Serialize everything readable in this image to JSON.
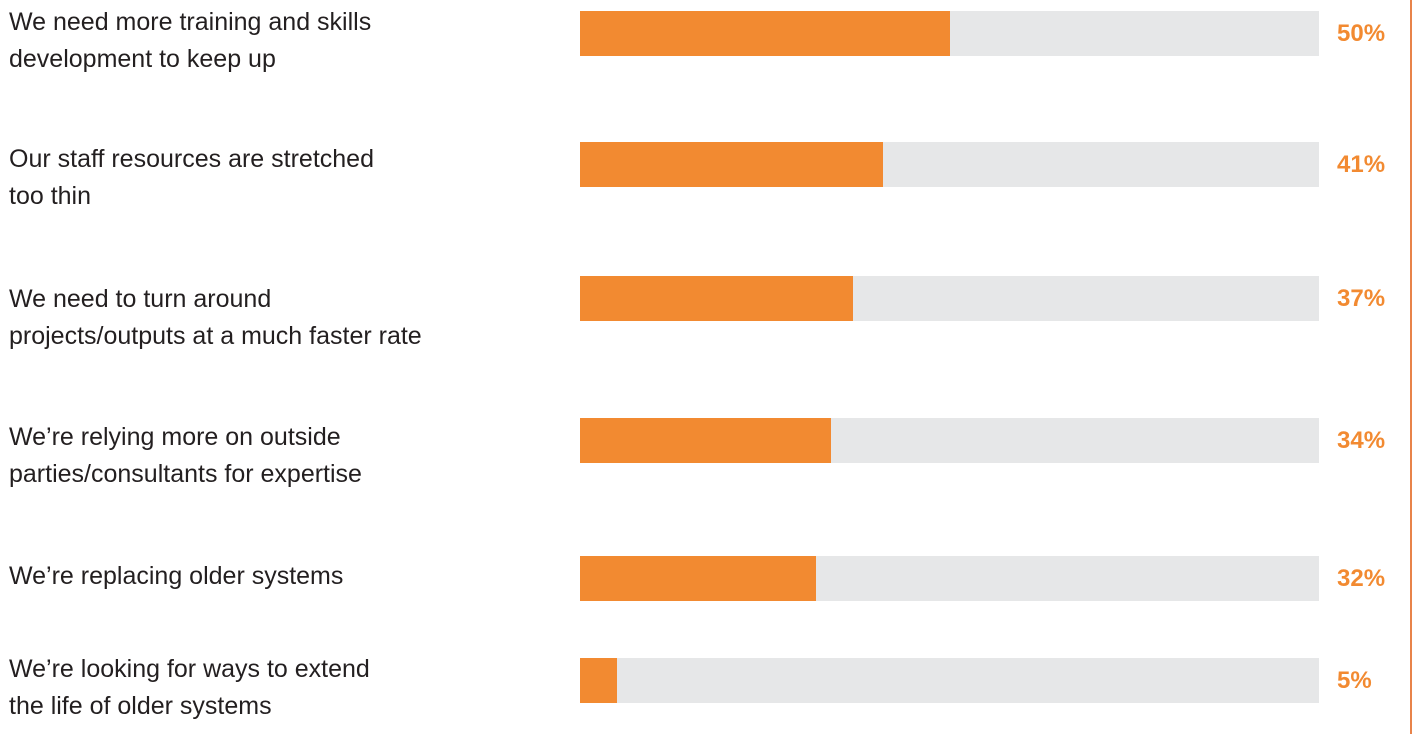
{
  "chart_data": {
    "type": "bar",
    "orientation": "horizontal",
    "categories": [
      "We need more training and skills\ndevelopment to keep up",
      "Our staff resources are stretched\ntoo thin",
      "We need to turn around\nprojects/outputs at a much faster rate",
      "We’re relying more on outside\nparties/consultants for expertise",
      "We’re replacing older systems",
      "We’re looking for ways to extend\nthe life of older systems"
    ],
    "values": [
      50,
      41,
      37,
      34,
      32,
      5
    ],
    "value_labels": [
      "50%",
      "41%",
      "37%",
      "34%",
      "32%",
      "5%"
    ],
    "xlim": [
      0,
      100
    ],
    "unit": "%",
    "grid": false,
    "legend": "none",
    "colors": {
      "bar": "#f28a31",
      "track": "#e6e7e8",
      "value_text": "#f28a31",
      "rule": "#e8834a"
    }
  }
}
